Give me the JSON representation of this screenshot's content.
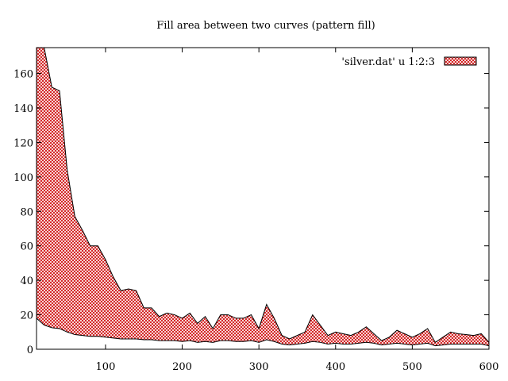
{
  "chart_data": {
    "type": "area",
    "title": "Fill area between two curves (pattern fill)",
    "xlabel": "",
    "ylabel": "",
    "xlim": [
      10,
      600
    ],
    "ylim": [
      0,
      175
    ],
    "x_ticks": [
      100,
      200,
      300,
      400,
      500,
      600
    ],
    "y_ticks": [
      0,
      20,
      40,
      60,
      80,
      100,
      120,
      140,
      160
    ],
    "grid": false,
    "legend": {
      "position": "top-right",
      "label": "'silver.dat' u 1:2:3"
    },
    "fill": {
      "pattern": "crosshatch",
      "color": "#cc0000",
      "background": "#ffffff"
    },
    "series": [
      {
        "name": "'silver.dat' u 1:2:3",
        "x": [
          10,
          20,
          30,
          40,
          50,
          60,
          70,
          80,
          90,
          100,
          110,
          120,
          130,
          140,
          150,
          160,
          170,
          180,
          190,
          200,
          210,
          220,
          230,
          240,
          250,
          260,
          270,
          280,
          290,
          300,
          310,
          320,
          330,
          340,
          350,
          360,
          370,
          380,
          390,
          400,
          410,
          420,
          430,
          440,
          450,
          460,
          470,
          480,
          490,
          500,
          510,
          520,
          530,
          540,
          550,
          560,
          570,
          580,
          590,
          600
        ],
        "upper": [
          175,
          175,
          152,
          150,
          104,
          77,
          69,
          60,
          60,
          52,
          42,
          34,
          35,
          34,
          24,
          24,
          19,
          21,
          20,
          18,
          21,
          15,
          19,
          12,
          20,
          20,
          18,
          18,
          20,
          12,
          26,
          18,
          8,
          6,
          8,
          10,
          20,
          14,
          8,
          10,
          9,
          8,
          10,
          13,
          9,
          5,
          7,
          11,
          9,
          7,
          9,
          12,
          4,
          7,
          10,
          9,
          8.5,
          8,
          9,
          4
        ],
        "lower": [
          18,
          14,
          12.5,
          12,
          10,
          8.5,
          8,
          7.5,
          7.5,
          7,
          6.5,
          6,
          6,
          6,
          5.5,
          5.5,
          5,
          5,
          5,
          4.5,
          5,
          4,
          4.5,
          4,
          5,
          5,
          4.5,
          4.5,
          5,
          4,
          5.5,
          4.5,
          3,
          2.5,
          3,
          3.5,
          4.5,
          4,
          3,
          3.5,
          3,
          3,
          3.5,
          4,
          3.5,
          2.5,
          3,
          3.5,
          3,
          2.5,
          3,
          3.5,
          2,
          2.5,
          3,
          3,
          3,
          3,
          3,
          2
        ]
      }
    ]
  }
}
